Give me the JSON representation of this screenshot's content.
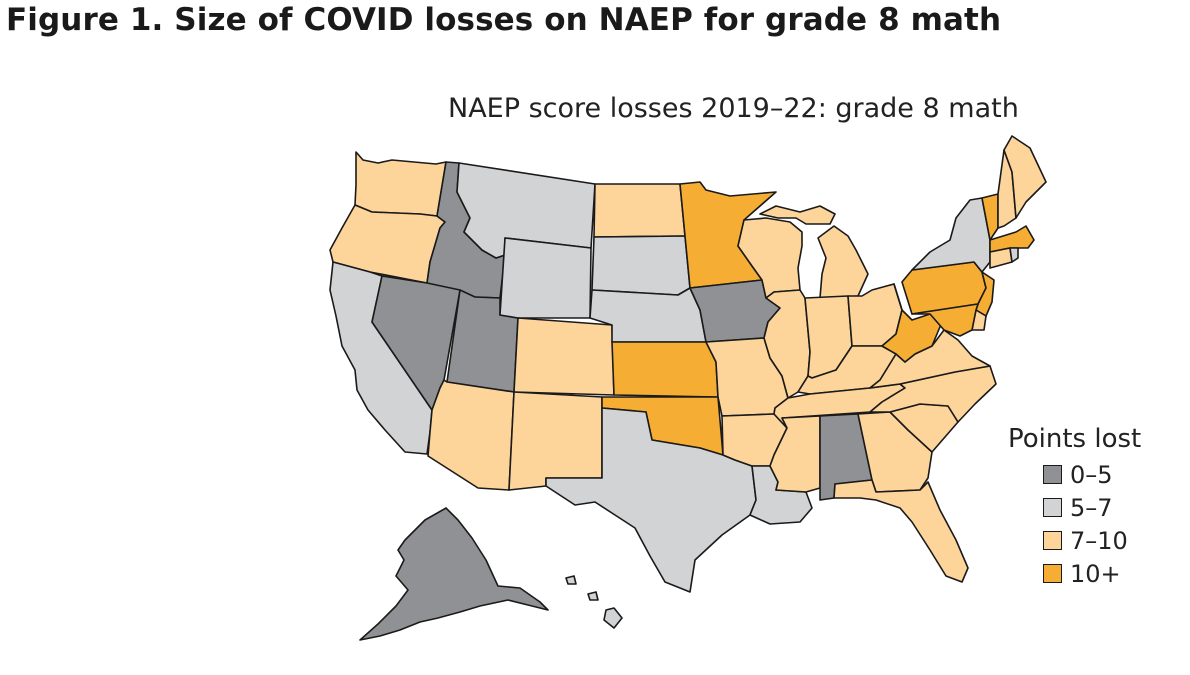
{
  "figure": {
    "title": "Figure 1. Size of COVID losses on NAEP for grade 8 math"
  },
  "map": {
    "title": "NAEP score losses 2019–22: grade 8 math",
    "legend": {
      "title": "Points lost",
      "items": [
        {
          "label": "0–5",
          "color": "#909194"
        },
        {
          "label": "5–7",
          "color": "#d2d3d5"
        },
        {
          "label": "7–10",
          "color": "#fdd59b"
        },
        {
          "label": "10+",
          "color": "#f6ad33"
        }
      ]
    },
    "states": {
      "WA": "7-10",
      "OR": "7-10",
      "CA": "5-7",
      "ID": "0-5",
      "NV": "0-5",
      "UT": "0-5",
      "AZ": "7-10",
      "MT": "5-7",
      "WY": "5-7",
      "CO": "7-10",
      "NM": "7-10",
      "ND": "7-10",
      "SD": "5-7",
      "NE": "5-7",
      "KS": "10+",
      "OK": "10+",
      "TX": "5-7",
      "MN": "10+",
      "IA": "0-5",
      "MO": "7-10",
      "AR": "7-10",
      "LA": "5-7",
      "WI": "7-10",
      "IL": "7-10",
      "MI": "7-10",
      "IN": "7-10",
      "OH": "7-10",
      "KY": "7-10",
      "TN": "7-10",
      "MS": "7-10",
      "AL": "0-5",
      "GA": "7-10",
      "FL": "7-10",
      "SC": "7-10",
      "NC": "7-10",
      "VA": "7-10",
      "WV": "10+",
      "PA": "10+",
      "NY": "5-7",
      "VT": "10+",
      "NH": "7-10",
      "ME": "7-10",
      "MA": "10+",
      "CT": "7-10",
      "RI": "5-7",
      "NJ": "10+",
      "DE": "7-10",
      "MD": "10+",
      "AK": "0-5",
      "HI": "5-7"
    }
  }
}
